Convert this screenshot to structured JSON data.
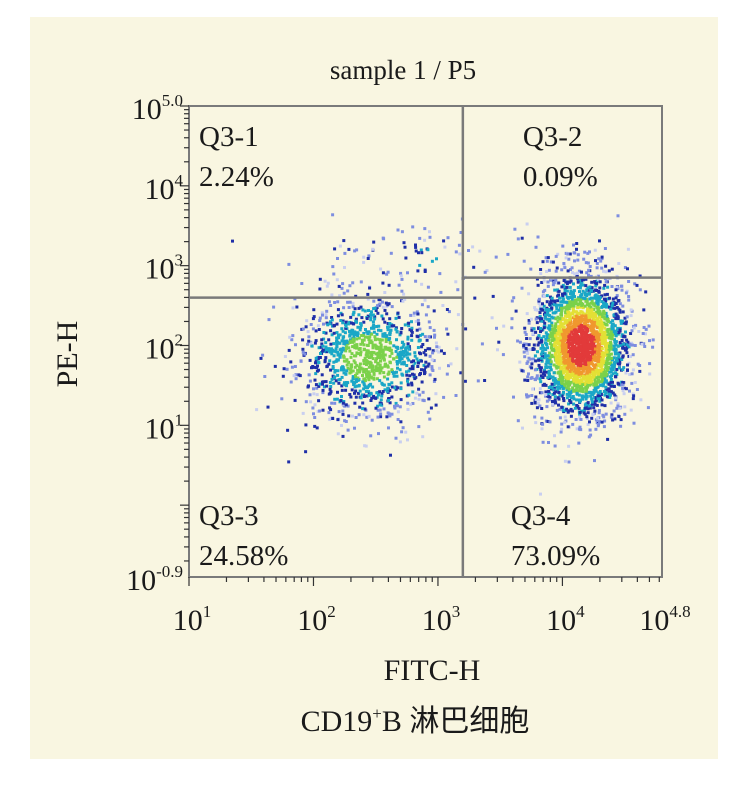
{
  "chart_data": {
    "type": "scatter",
    "title": "sample 1 / P5",
    "xlabel": "FITC-H",
    "ylabel": "PE-H",
    "caption": {
      "main": "CD19",
      "sup": "+",
      "rest": "B 淋巴细胞"
    },
    "x_scale": "log",
    "y_scale": "log",
    "xlim_exponent": [
      1,
      4.8
    ],
    "ylim_exponent": [
      -0.9,
      5.0
    ],
    "x_ticks": [
      {
        "exp": 1,
        "base": "10",
        "sup": "1"
      },
      {
        "exp": 2,
        "base": "10",
        "sup": "2"
      },
      {
        "exp": 3,
        "base": "10",
        "sup": "3"
      },
      {
        "exp": 4,
        "base": "10",
        "sup": "4"
      },
      {
        "exp": 4.8,
        "base": "10",
        "sup": "4.8"
      }
    ],
    "y_ticks": [
      {
        "exp": 5.0,
        "base": "10",
        "sup": "5.0"
      },
      {
        "exp": 4,
        "base": "10",
        "sup": "4"
      },
      {
        "exp": 3,
        "base": "10",
        "sup": "3"
      },
      {
        "exp": 2,
        "base": "10",
        "sup": "2"
      },
      {
        "exp": 1,
        "base": "10",
        "sup": "1"
      },
      {
        "exp": -0.9,
        "base": "10",
        "sup": "-0.9"
      }
    ],
    "gates": {
      "x_split_exponent": 3.2,
      "y_split_left_exponent": 2.6,
      "y_split_right_exponent": 2.85
    },
    "quadrants": [
      {
        "name": "Q3-1",
        "percent": "2.24%",
        "position": "upper-left"
      },
      {
        "name": "Q3-2",
        "percent": "0.09%",
        "position": "upper-right"
      },
      {
        "name": "Q3-3",
        "percent": "24.58%",
        "position": "lower-left"
      },
      {
        "name": "Q3-4",
        "percent": "73.09%",
        "position": "lower-right"
      }
    ],
    "populations": [
      {
        "quadrant": "Q3-1",
        "center_exponent": [
          2.8,
          3.1
        ],
        "spread_exponent": [
          0.45,
          0.25
        ],
        "count": 90,
        "peak_density": 0.2
      },
      {
        "quadrant": "Q3-3",
        "center_exponent": [
          2.45,
          1.85
        ],
        "spread_exponent": [
          0.3,
          0.4
        ],
        "count": 1100,
        "peak_density": 0.55
      },
      {
        "quadrant": "Q3-4",
        "center_exponent": [
          4.15,
          2.0
        ],
        "spread_exponent": [
          0.2,
          0.45
        ],
        "count": 2600,
        "peak_density": 1.0
      }
    ],
    "density_colors": [
      "#c9cff0",
      "#7e8ee0",
      "#1f2fa8",
      "#1aa7c7",
      "#7bd14a",
      "#e3e035",
      "#f0982e",
      "#e23a3a"
    ]
  }
}
